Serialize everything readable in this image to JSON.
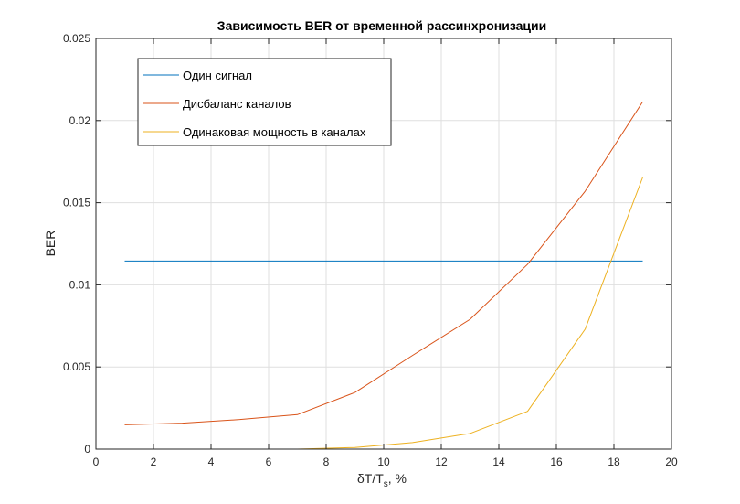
{
  "chart_data": {
    "type": "line",
    "title": "Зависимость BER от временной рассинхронизации",
    "xlabel": {
      "main": "δT/T",
      "sub": "s",
      "suffix": ", %"
    },
    "ylabel": "BER",
    "xlim": [
      0,
      20
    ],
    "ylim": [
      0,
      0.025
    ],
    "xticks": [
      0,
      2,
      4,
      6,
      8,
      10,
      12,
      14,
      16,
      18,
      20
    ],
    "yticks": [
      0,
      0.005,
      0.01,
      0.015,
      0.02,
      0.025
    ],
    "xtick_labels": [
      "0",
      "2",
      "4",
      "6",
      "8",
      "10",
      "12",
      "14",
      "16",
      "18",
      "20"
    ],
    "ytick_labels": [
      "0",
      "0.005",
      "0.01",
      "0.015",
      "0.02",
      "0.025"
    ],
    "grid": true,
    "legend_position": "top-left",
    "x": [
      1,
      3,
      5,
      7,
      9,
      11,
      13,
      15,
      17,
      19
    ],
    "series": [
      {
        "name": "Один сигнал",
        "color": "#0072BD",
        "values": [
          0.01145,
          0.01145,
          0.01145,
          0.01145,
          0.01145,
          0.01145,
          0.01145,
          0.01145,
          0.01145,
          0.01145
        ]
      },
      {
        "name": "Дисбаланс каналов",
        "color": "#D95319",
        "values": [
          0.00148,
          0.00158,
          0.0018,
          0.0021,
          0.00345,
          0.0057,
          0.0079,
          0.01125,
          0.0157,
          0.02115
        ]
      },
      {
        "name": "Одинаковая мощность в каналах",
        "color": "#EDB120",
        "values": [
          0.0,
          0.0,
          0.0,
          0.0,
          0.0001,
          0.0004,
          0.00095,
          0.0023,
          0.0073,
          0.01655
        ]
      }
    ]
  }
}
